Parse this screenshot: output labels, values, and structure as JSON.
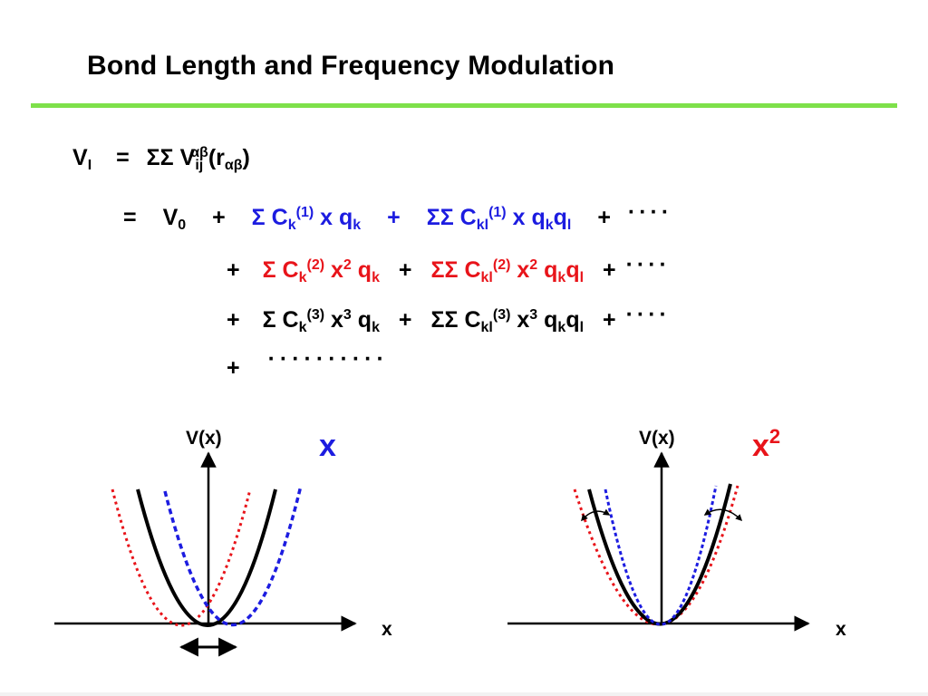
{
  "title": "Bond Length and Frequency Modulation",
  "accent_color": "#7ee04a",
  "equation": {
    "line1": {
      "lhs": "V",
      "lhs_sub": "I",
      "eq": "=",
      "sum": "ΣΣ",
      "v": "V",
      "v_sub": "ij",
      "v_sup": "αβ",
      "arg_open": "(r",
      "arg_sub": "αβ",
      "arg_close": ")"
    },
    "line2": {
      "eq": "=",
      "v0": "V",
      "v0_sub": "0",
      "plus1": "+",
      "t1_sum": "Σ",
      "t1_c": "C",
      "t1_c_sub": "k",
      "t1_c_sup": "(1)",
      "t1_x": "x",
      "t1_q": "q",
      "t1_q_sub": "k",
      "plus2": "+",
      "t2_sum": "ΣΣ",
      "t2_c": "C",
      "t2_c_sub": "kl",
      "t2_c_sup": "(1)",
      "t2_x": "x",
      "t2_q1": "q",
      "t2_q1_sub": "k",
      "t2_q2": "q",
      "t2_q2_sub": "l",
      "plus3": "+",
      "dots": "····"
    },
    "line3": {
      "plus1": "+",
      "t1_sum": "Σ",
      "t1_c": "C",
      "t1_c_sub": "k",
      "t1_c_sup": "(2)",
      "t1_x": "x",
      "t1_x_sup": "2",
      "t1_q": "q",
      "t1_q_sub": "k",
      "plus2": "+",
      "t2_sum": "ΣΣ",
      "t2_c": "C",
      "t2_c_sub": "kl",
      "t2_c_sup": "(2)",
      "t2_x": "x",
      "t2_x_sup": "2",
      "t2_q1": "q",
      "t2_q1_sub": "k",
      "t2_q2": "q",
      "t2_q2_sub": "l",
      "plus3": "+",
      "dots": "····"
    },
    "line4": {
      "plus1": "+",
      "t1_sum": "Σ",
      "t1_c": "C",
      "t1_c_sub": "k",
      "t1_c_sup": "(3)",
      "t1_x": "x",
      "t1_x_sup": "3",
      "t1_q": "q",
      "t1_q_sub": "k",
      "plus2": "+",
      "t2_sum": "ΣΣ",
      "t2_c": "C",
      "t2_c_sub": "kl",
      "t2_c_sup": "(3)",
      "t2_x": "x",
      "t2_x_sup": "3",
      "t2_q1": "q",
      "t2_q1_sub": "k",
      "t2_q2": "q",
      "t2_q2_sub": "l",
      "plus3": "+",
      "dots": "····"
    },
    "line5": {
      "plus": "+",
      "dots": "··········"
    }
  },
  "left_plot": {
    "y_label": "V(x)",
    "x_label": "x",
    "tag": "x",
    "tag_color": "#1c1ce0"
  },
  "right_plot": {
    "y_label": "V(x)",
    "x_label": "x",
    "tag": "x",
    "tag_sup": "2",
    "tag_color": "#e8141a"
  },
  "colors": {
    "blue": "#1c1ce0",
    "red": "#e8141a",
    "black": "#000000"
  }
}
